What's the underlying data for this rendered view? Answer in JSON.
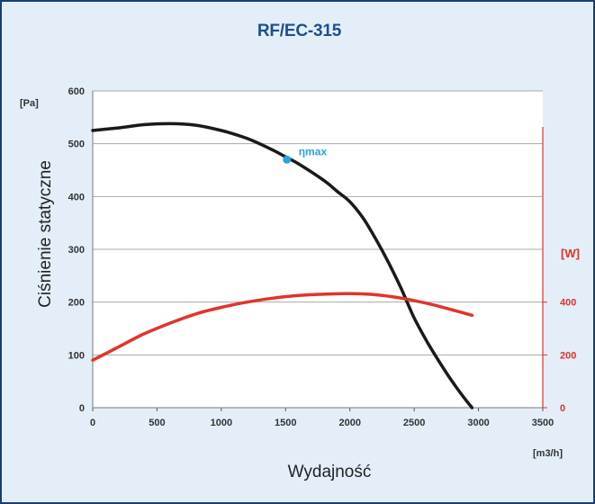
{
  "chart_data": {
    "type": "line",
    "title": "RF/EC-315",
    "xlabel": "Wydajność",
    "ylabel": "Ciśnienie statyczne",
    "x_unit": "[m3/h]",
    "y_unit": "[Pa]",
    "y2_unit": "[W]",
    "xlim": [
      0,
      3500
    ],
    "ylim": [
      0,
      600
    ],
    "y2lim": [
      0,
      1200
    ],
    "x_ticks": [
      "0",
      "500",
      "1000",
      "1500",
      "2000",
      "2500",
      "3000",
      "3500"
    ],
    "y_ticks": [
      "0",
      "100",
      "200",
      "300",
      "400",
      "500",
      "600"
    ],
    "y2_ticks": [
      "0",
      "200",
      "400"
    ],
    "grid": true,
    "series": [
      {
        "axis": "left",
        "color": "#1a1a1a",
        "x": [
          0,
          200,
          400,
          600,
          800,
          1000,
          1200,
          1400,
          1500,
          1600,
          1800,
          1900,
          2000,
          2100,
          2200,
          2300,
          2400,
          2500,
          2600,
          2700,
          2800,
          2900,
          2950
        ],
        "y": [
          525,
          530,
          536,
          538,
          535,
          525,
          510,
          488,
          475,
          462,
          430,
          410,
          390,
          360,
          320,
          275,
          225,
          170,
          125,
          85,
          48,
          15,
          0
        ]
      },
      {
        "axis": "right",
        "color": "#e0352b",
        "x": [
          0,
          200,
          400,
          600,
          800,
          1000,
          1200,
          1400,
          1600,
          1800,
          2000,
          2200,
          2400,
          2600,
          2800,
          2950
        ],
        "y": [
          180,
          230,
          280,
          320,
          355,
          380,
          400,
          415,
          425,
          430,
          432,
          428,
          415,
          395,
          370,
          350
        ]
      }
    ],
    "annotations": [
      {
        "text": "ηmax",
        "x": 1510,
        "y": 470,
        "color": "#29a3dd"
      }
    ]
  }
}
